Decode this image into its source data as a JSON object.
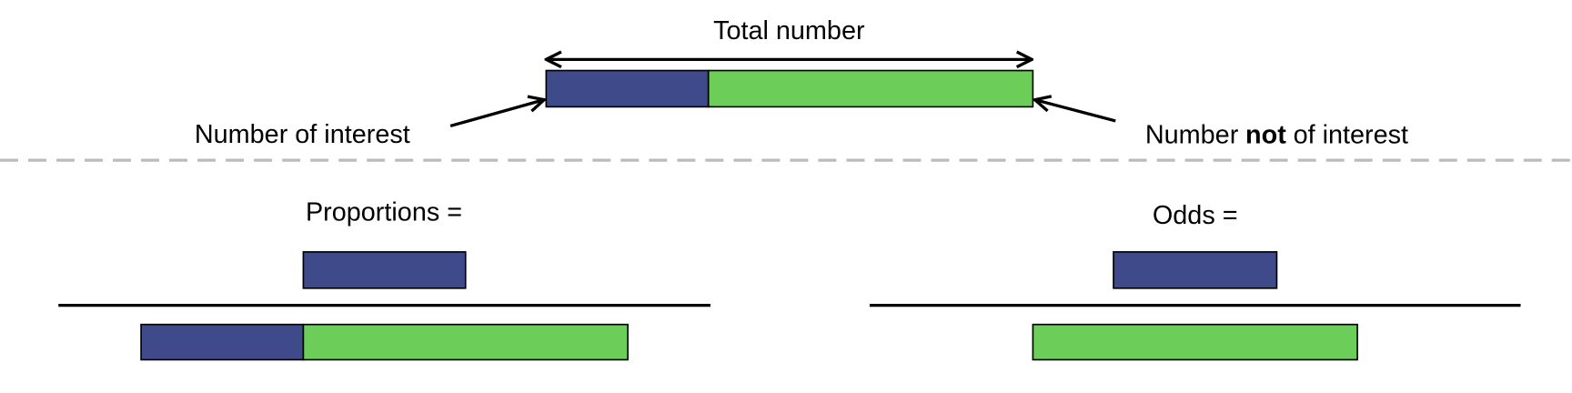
{
  "top": {
    "label": "Total number",
    "left_label": "Number of interest",
    "right_label": {
      "parts": [
        "Number",
        "not",
        "of interest"
      ]
    }
  },
  "proportions": {
    "label": "Proportions ="
  },
  "odds": {
    "label": "Odds ="
  }
}
